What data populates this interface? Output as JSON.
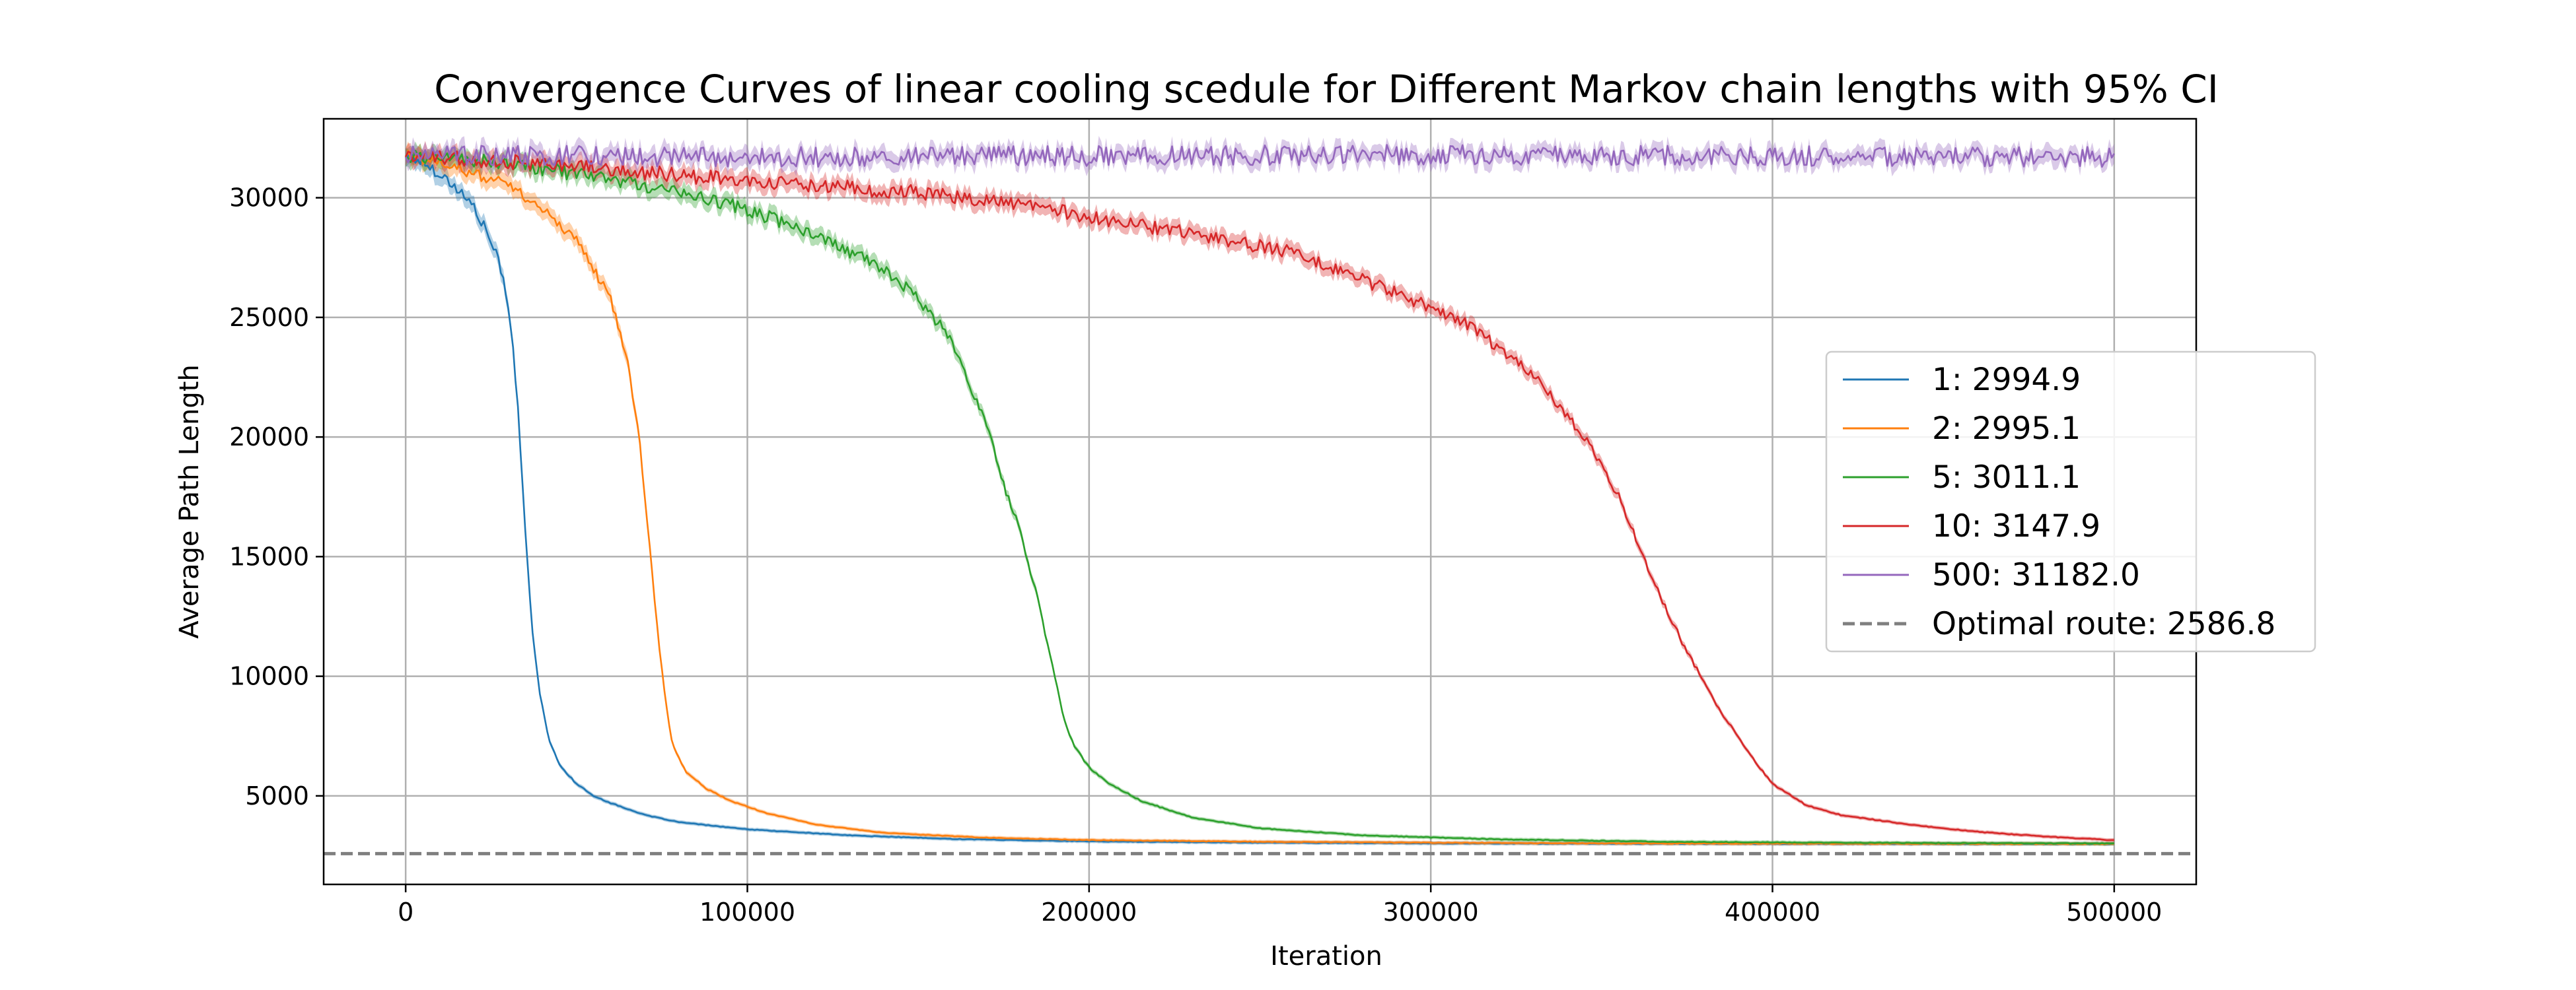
{
  "chart_data": {
    "type": "line",
    "title": "Convergence Curves of linear cooling scedule for Different Markov chain lengths with 95% CI",
    "xlabel": "Iteration",
    "ylabel": "Average Path Length",
    "xlim": [
      -24000,
      524000
    ],
    "ylim": [
      1300,
      33300
    ],
    "xticks": [
      0,
      100000,
      200000,
      300000,
      400000,
      500000
    ],
    "yticks": [
      5000,
      10000,
      15000,
      20000,
      25000,
      30000
    ],
    "grid": true,
    "legend_position": "right",
    "confidence_band": "95% CI",
    "series": [
      {
        "name": "1: 2994.9",
        "color": "#1f77b4",
        "points": [
          [
            0,
            31800
          ],
          [
            5000,
            31500
          ],
          [
            10000,
            31000
          ],
          [
            15000,
            30400
          ],
          [
            20000,
            29600
          ],
          [
            25000,
            28200
          ],
          [
            28000,
            27000
          ],
          [
            31000,
            24500
          ],
          [
            33000,
            21000
          ],
          [
            35000,
            16000
          ],
          [
            37000,
            12000
          ],
          [
            39000,
            9500
          ],
          [
            42000,
            7300
          ],
          [
            45000,
            6300
          ],
          [
            50000,
            5500
          ],
          [
            55000,
            5000
          ],
          [
            60000,
            4700
          ],
          [
            70000,
            4200
          ],
          [
            80000,
            3900
          ],
          [
            100000,
            3600
          ],
          [
            130000,
            3350
          ],
          [
            160000,
            3200
          ],
          [
            200000,
            3100
          ],
          [
            250000,
            3050
          ],
          [
            300000,
            3020
          ],
          [
            350000,
            3005
          ],
          [
            400000,
            3000
          ],
          [
            450000,
            2997
          ],
          [
            500000,
            2995
          ]
        ],
        "noise": 250
      },
      {
        "name": "2: 2995.1",
        "color": "#ff7f0e",
        "points": [
          [
            0,
            31800
          ],
          [
            10000,
            31500
          ],
          [
            20000,
            31000
          ],
          [
            30000,
            30500
          ],
          [
            40000,
            29500
          ],
          [
            50000,
            28200
          ],
          [
            55000,
            27000
          ],
          [
            60000,
            25800
          ],
          [
            65000,
            23000
          ],
          [
            68000,
            20500
          ],
          [
            70000,
            17500
          ],
          [
            72000,
            14500
          ],
          [
            74000,
            11500
          ],
          [
            76000,
            9000
          ],
          [
            78000,
            7200
          ],
          [
            82000,
            6000
          ],
          [
            88000,
            5300
          ],
          [
            95000,
            4800
          ],
          [
            105000,
            4300
          ],
          [
            120000,
            3800
          ],
          [
            140000,
            3450
          ],
          [
            170000,
            3250
          ],
          [
            200000,
            3150
          ],
          [
            250000,
            3080
          ],
          [
            300000,
            3040
          ],
          [
            350000,
            3015
          ],
          [
            400000,
            3005
          ],
          [
            450000,
            2998
          ],
          [
            500000,
            2995
          ]
        ],
        "noise": 250
      },
      {
        "name": "5: 3011.1",
        "color": "#2ca02c",
        "points": [
          [
            0,
            31800
          ],
          [
            25000,
            31500
          ],
          [
            50000,
            31000
          ],
          [
            75000,
            30400
          ],
          [
            100000,
            29500
          ],
          [
            120000,
            28500
          ],
          [
            140000,
            27000
          ],
          [
            150000,
            25800
          ],
          [
            160000,
            24000
          ],
          [
            170000,
            20500
          ],
          [
            175000,
            18000
          ],
          [
            180000,
            16000
          ],
          [
            185000,
            13200
          ],
          [
            190000,
            10000
          ],
          [
            193000,
            8000
          ],
          [
            196000,
            7000
          ],
          [
            200000,
            6200
          ],
          [
            205000,
            5600
          ],
          [
            215000,
            4800
          ],
          [
            230000,
            4100
          ],
          [
            250000,
            3650
          ],
          [
            280000,
            3350
          ],
          [
            320000,
            3180
          ],
          [
            370000,
            3080
          ],
          [
            420000,
            3040
          ],
          [
            460000,
            3020
          ],
          [
            500000,
            3011
          ]
        ],
        "noise": 300
      },
      {
        "name": "10: 3147.9",
        "color": "#d62728",
        "points": [
          [
            0,
            31800
          ],
          [
            50000,
            31300
          ],
          [
            100000,
            30700
          ],
          [
            150000,
            30200
          ],
          [
            180000,
            29700
          ],
          [
            200000,
            29200
          ],
          [
            230000,
            28500
          ],
          [
            260000,
            27700
          ],
          [
            290000,
            26000
          ],
          [
            310000,
            24800
          ],
          [
            330000,
            22600
          ],
          [
            345000,
            20000
          ],
          [
            355000,
            17500
          ],
          [
            365000,
            14000
          ],
          [
            375000,
            11000
          ],
          [
            385000,
            8500
          ],
          [
            395000,
            6400
          ],
          [
            400000,
            5500
          ],
          [
            410000,
            4600
          ],
          [
            420000,
            4200
          ],
          [
            440000,
            3800
          ],
          [
            460000,
            3500
          ],
          [
            480000,
            3300
          ],
          [
            500000,
            3148
          ]
        ],
        "noise": 320
      },
      {
        "name": "500: 31182.0",
        "color": "#9467bd",
        "points": [
          [
            0,
            31800
          ],
          [
            100000,
            31700
          ],
          [
            200000,
            31750
          ],
          [
            300000,
            31800
          ],
          [
            400000,
            31750
          ],
          [
            500000,
            31700
          ]
        ],
        "noise": 420,
        "flat": true
      }
    ],
    "reference_line": {
      "name": "Optimal route: 2586.8",
      "value": 2586.8,
      "color": "#7f7f7f",
      "style": "dashed"
    }
  }
}
